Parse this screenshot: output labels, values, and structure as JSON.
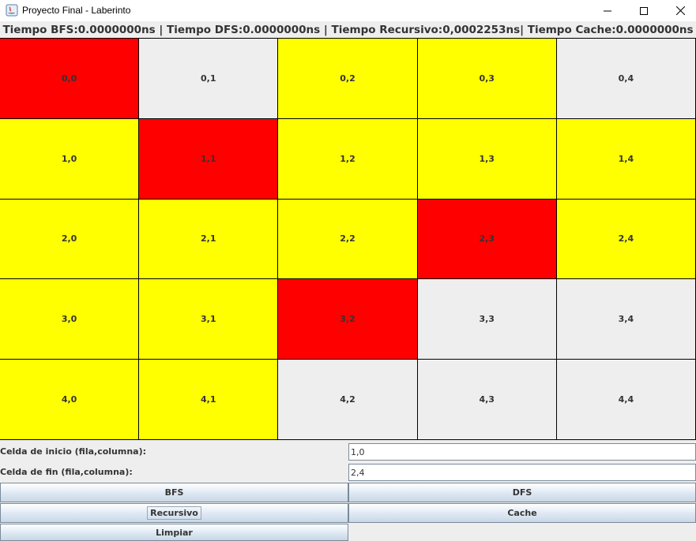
{
  "window": {
    "title": "Proyecto Final - Laberinto",
    "controls": {
      "minimize": "—",
      "maximize": "☐",
      "close": "✕"
    }
  },
  "header": {
    "timing": "Tiempo BFS:0.0000000ns | Tiempo DFS:0.0000000ns | Tiempo Recursivo:0,0002253ns| Tiempo Cache:0.0000000ns"
  },
  "colors": {
    "red": "#ff0000",
    "yellow": "#ffff00",
    "gray": "#eeeeee"
  },
  "grid": {
    "rows": [
      [
        {
          "label": "0,0",
          "color": "red"
        },
        {
          "label": "0,1",
          "color": "gray"
        },
        {
          "label": "0,2",
          "color": "yellow"
        },
        {
          "label": "0,3",
          "color": "yellow"
        },
        {
          "label": "0,4",
          "color": "gray"
        }
      ],
      [
        {
          "label": "1,0",
          "color": "yellow"
        },
        {
          "label": "1,1",
          "color": "red"
        },
        {
          "label": "1,2",
          "color": "yellow"
        },
        {
          "label": "1,3",
          "color": "yellow"
        },
        {
          "label": "1,4",
          "color": "yellow"
        }
      ],
      [
        {
          "label": "2,0",
          "color": "yellow"
        },
        {
          "label": "2,1",
          "color": "yellow"
        },
        {
          "label": "2,2",
          "color": "yellow"
        },
        {
          "label": "2,3",
          "color": "red"
        },
        {
          "label": "2,4",
          "color": "yellow"
        }
      ],
      [
        {
          "label": "3,0",
          "color": "yellow"
        },
        {
          "label": "3,1",
          "color": "yellow"
        },
        {
          "label": "3,2",
          "color": "red"
        },
        {
          "label": "3,3",
          "color": "gray"
        },
        {
          "label": "3,4",
          "color": "gray"
        }
      ],
      [
        {
          "label": "4,0",
          "color": "yellow"
        },
        {
          "label": "4,1",
          "color": "yellow"
        },
        {
          "label": "4,2",
          "color": "gray"
        },
        {
          "label": "4,3",
          "color": "gray"
        },
        {
          "label": "4,4",
          "color": "gray"
        }
      ]
    ]
  },
  "form": {
    "start_label": "Celda de inicio (fila,columna):",
    "start_value": "1,0",
    "end_label": "Celda de fin (fila,columna):",
    "end_value": "2,4"
  },
  "buttons": {
    "bfs": "BFS",
    "dfs": "DFS",
    "recursive": "Recursivo",
    "cache": "Cache",
    "clear": "Limpiar"
  }
}
